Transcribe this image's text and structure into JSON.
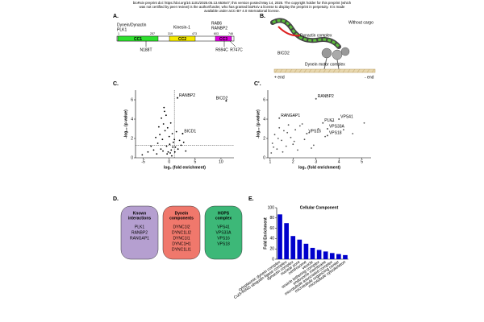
{
  "header": {
    "lines": [
      "bioRxiv preprint doi: https://doi.org/10.1101/2025.05.13.653647; this version posted May 14, 2025. The copyright holder for this preprint (which",
      "was not certified by peer review) is the author/funder, who has granted bioRxiv a license to display the preprint in perpetuity. It is made",
      "available under aCC-BY 4.0 International license."
    ]
  },
  "panel_a": {
    "label": "A.",
    "partners": [
      [
        "Dynein/Dynactin",
        "PLK1"
      ],
      [
        "Kinesin-1"
      ],
      [
        "RAB6",
        "RANBP2"
      ]
    ],
    "residues": [
      1,
      257,
      319,
      473,
      603,
      746
    ],
    "domains": [
      "CC1",
      "CC2",
      "CC3"
    ],
    "mutations": [
      "N188T",
      "R694C",
      "R747C"
    ]
  },
  "panel_b": {
    "label": "B.",
    "texts": [
      "Without cargo",
      "Dynactin complex",
      "BICD2",
      "Dynein motor complex",
      "+ end",
      "- end"
    ]
  },
  "panel_labels": [
    "C.",
    "C'.",
    "D.",
    "E."
  ],
  "panel_d": {
    "groups": [
      {
        "title": [
          "Known",
          "interactions"
        ],
        "items": [
          "PLK1",
          "RANBP2",
          "RANGAP1"
        ],
        "color": "#b59fd0"
      },
      {
        "title": [
          "Dynein",
          "components"
        ],
        "items": [
          "DYNC1I2",
          "DYNC1LI2",
          "DYNC1I1",
          "DYNC1H1",
          "DYNC1LI1"
        ],
        "color": "#f0786c"
      },
      {
        "title": [
          "HOPS",
          "complex"
        ],
        "items": [
          "VPS41",
          "VPS33A",
          "VPS16",
          "VPS18"
        ],
        "color": "#3db878"
      }
    ]
  },
  "chart_data": [
    {
      "type": "scatter",
      "xlabel": "log₂ (fold enrichment)",
      "ylabel": "-log₁₀ (p-value)",
      "xlim": [
        -6.5,
        12.5
      ],
      "xticks": [
        -5,
        0,
        5,
        10
      ],
      "ylim": [
        0,
        7
      ],
      "yticks": [
        0,
        2,
        4,
        6
      ],
      "color": "#000000",
      "threshold_x": 1,
      "threshold_y": 1.3,
      "x": [
        -5.2,
        -4.1,
        -3.5,
        -3,
        -2.6,
        -2.2,
        -2,
        -1.8,
        -1.5,
        -1.3,
        -1.1,
        -1,
        -0.8,
        -0.6,
        -0.5,
        -0.3,
        -0.2,
        0,
        0.1,
        0.3,
        0.4,
        0.6,
        0.8,
        1,
        1.2,
        1.4,
        1.7,
        2,
        2.3,
        2.8,
        3.2,
        -1.6,
        -0.9,
        -0.4,
        0.2,
        0.7,
        -2.4,
        -1.2,
        0.5,
        1.1
      ],
      "y": [
        0.3,
        0.6,
        1.2,
        0.8,
        2.1,
        1.5,
        3.2,
        2.4,
        4.1,
        1.9,
        3.5,
        5.2,
        2.8,
        4.4,
        1.2,
        3.1,
        0.6,
        2.2,
        1.4,
        3.6,
        0.8,
        2.5,
        1.6,
        1.9,
        1.1,
        2.7,
        0.9,
        1.8,
        1.3,
        1.6,
        0.7,
        0.9,
        4.8,
        0.4,
        0.5,
        1.1,
        0.4,
        0.7,
        0.2,
        0.6
      ],
      "annotations": [
        {
          "text": "RANBP2",
          "x": 1.6,
          "y": 6.2
        },
        {
          "text": "BICD2",
          "x": 11,
          "y": 5.9
        },
        {
          "text": "BICD1",
          "x": 2.6,
          "y": 2.5
        }
      ]
    },
    {
      "type": "scatter",
      "xlabel": "log₂ (fold enrichment)",
      "ylabel": "-log₁₀ (p-value)",
      "xlim": [
        0.9,
        5.4
      ],
      "xticks": [
        1,
        2,
        3,
        4,
        5
      ],
      "ylim": [
        0,
        7
      ],
      "yticks": [
        0,
        2,
        4,
        6
      ],
      "color": "#555555",
      "x": [
        1.05,
        1.1,
        1.2,
        1.3,
        1.4,
        1.5,
        1.6,
        1.7,
        1.8,
        1.9,
        2.0,
        2.1,
        2.2,
        2.3,
        2.5,
        2.7,
        2.9,
        3.1,
        3.4,
        3.7,
        4.2,
        4.6,
        5.1,
        1.15,
        1.35,
        1.55,
        1.75,
        2.05,
        2.4,
        2.8
      ],
      "y": [
        0.5,
        1.5,
        2.4,
        0.9,
        3.1,
        1.8,
        2.8,
        1.2,
        3.4,
        2.1,
        1.4,
        2.9,
        0.8,
        3.3,
        1.9,
        2.6,
        1.3,
        3.0,
        2.2,
        3.8,
        2.9,
        2.5,
        3.6,
        1.1,
        2.0,
        0.6,
        2.6,
        1.7,
        3.5,
        1.0
      ],
      "annotations": [
        {
          "text": "RANBP2",
          "x": 3.0,
          "y": 6.1
        },
        {
          "text": "RANGAP1",
          "x": 1.4,
          "y": 4.1
        },
        {
          "text": "PLK1",
          "x": 3.3,
          "y": 3.6
        },
        {
          "text": "VPS41",
          "x": 4.0,
          "y": 4.0
        },
        {
          "text": "VPS33A",
          "x": 3.5,
          "y": 3.0
        },
        {
          "text": "VPS16",
          "x": 2.6,
          "y": 2.5
        },
        {
          "text": "VPS18",
          "x": 3.5,
          "y": 2.3
        }
      ]
    },
    {
      "type": "bar",
      "title": "Cellular Component",
      "ylabel": "Fold Enrichment",
      "ylim": [
        0,
        100
      ],
      "yticks": [
        0,
        20,
        40,
        60,
        80,
        100
      ],
      "color": "#0000cc",
      "categories": [
        "cytoplasmic dynein complex",
        "Cul3-RING ubiquitin ligase complex",
        "dynactin complex",
        "nuclear pore",
        "centrosome",
        "vesicle",
        "vesicle tethering complex",
        "endosome membrane",
        "microtubule associated complex",
        "microtubule organizing center",
        "microtubule cytoskeleton"
      ],
      "values": [
        87,
        70,
        45,
        38,
        30,
        22,
        18,
        15,
        12,
        10,
        8
      ]
    }
  ]
}
